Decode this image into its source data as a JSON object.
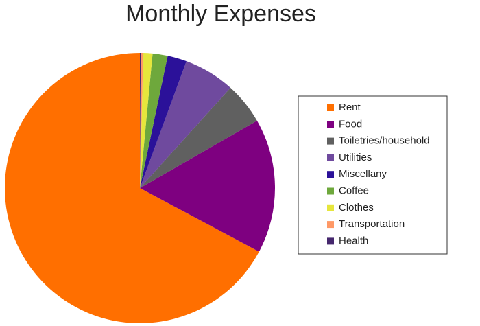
{
  "chart_data": {
    "type": "pie",
    "title": "Monthly Expenses",
    "categories": [
      "Rent",
      "Food",
      "Toiletries/household",
      "Utilities",
      "Miscellany",
      "Coffee",
      "Clothes",
      "Transportation",
      "Health"
    ],
    "values": [
      67.2,
      16.1,
      5,
      6.1,
      2.3,
      1.8,
      1.1,
      0.3,
      0.1
    ],
    "colors": [
      "#ff6f00",
      "#7e0080",
      "#606060",
      "#6f4a9e",
      "#2b1199",
      "#6ea83c",
      "#e6e63c",
      "#ff9966",
      "#45276d"
    ],
    "legend": "right"
  }
}
